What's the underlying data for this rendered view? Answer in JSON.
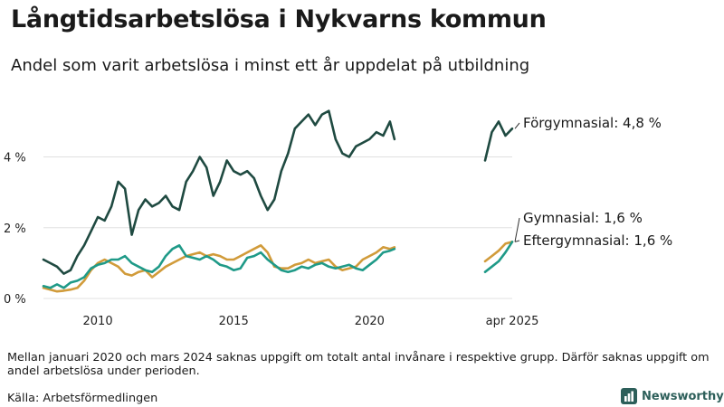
{
  "header": {
    "title": "Långtidsarbetslösa i Nykvarns kommun",
    "subtitle": "Andel som varit arbetslösa i minst ett år uppdelat på utbildning"
  },
  "footer": {
    "note": "Mellan januari 2020 och mars 2024 saknas uppgift om totalt antal invånare i respektive grupp. Därför saknas uppgift om andel arbetslösa under perioden.",
    "source": "Källa: Arbetsförmedlingen",
    "brand": "Newsworthy"
  },
  "colors": {
    "forgymnasial": "#1f4a41",
    "gymnasial": "#d19b3a",
    "eftergymnasial": "#1f9a88",
    "grid": "#e0e0e0",
    "brand": "#2d5f5a"
  },
  "chart_data": {
    "type": "line",
    "title": "Långtidsarbetslösa i Nykvarns kommun",
    "subtitle": "Andel som varit arbetslösa i minst ett år uppdelat på utbildning",
    "xlabel": "",
    "ylabel": "",
    "x_ticks": [
      "2010",
      "2015",
      "2020",
      "apr 2025"
    ],
    "y_ticks": [
      "0 %",
      "2 %",
      "4 %"
    ],
    "y_tick_values": [
      0,
      2,
      4
    ],
    "xlim": [
      "2008-01",
      "2025-04"
    ],
    "ylim": [
      0,
      5.7
    ],
    "grid": "horizontal",
    "series": [
      {
        "name": "Förgymnasial",
        "end_label": "Förgymnasial: 4,8 %",
        "segments": [
          {
            "x": [
              "2008-01",
              "2008-04",
              "2008-07",
              "2008-10",
              "2009-01",
              "2009-04",
              "2009-07",
              "2009-10",
              "2010-01",
              "2010-04",
              "2010-07",
              "2010-10",
              "2011-01",
              "2011-04",
              "2011-07",
              "2011-10",
              "2012-01",
              "2012-04",
              "2012-07",
              "2012-10",
              "2013-01",
              "2013-04",
              "2013-07",
              "2013-10",
              "2014-01",
              "2014-04",
              "2014-07",
              "2014-10",
              "2015-01",
              "2015-04",
              "2015-07",
              "2015-10",
              "2016-01",
              "2016-04",
              "2016-07",
              "2016-10",
              "2017-01",
              "2017-04",
              "2017-07",
              "2017-10",
              "2018-01",
              "2018-04",
              "2018-07",
              "2018-10",
              "2019-01",
              "2019-04",
              "2019-07",
              "2019-10",
              "2020-01",
              "2020-04",
              "2020-07",
              "2020-10",
              "2020-12"
            ],
            "y": [
              1.1,
              1.0,
              0.9,
              0.7,
              0.8,
              1.2,
              1.5,
              1.9,
              2.3,
              2.2,
              2.6,
              3.3,
              3.1,
              1.8,
              2.5,
              2.8,
              2.6,
              2.7,
              2.9,
              2.6,
              2.5,
              3.3,
              3.6,
              4.0,
              3.7,
              2.9,
              3.3,
              3.9,
              3.6,
              3.5,
              3.6,
              3.4,
              2.9,
              2.5,
              2.8,
              3.6,
              4.1,
              4.8,
              5.0,
              5.2,
              4.9,
              5.2,
              5.3,
              4.5,
              4.1,
              4.0,
              4.3,
              4.4,
              4.5,
              4.7,
              4.6,
              5.0,
              4.5
            ]
          },
          {
            "x": [
              "2024-04",
              "2024-07",
              "2024-10",
              "2025-01",
              "2025-04"
            ],
            "y": [
              3.9,
              4.7,
              5.0,
              4.6,
              4.8
            ]
          }
        ]
      },
      {
        "name": "Gymnasial",
        "end_label": "Gymnasial: 1,6 %",
        "segments": [
          {
            "x": [
              "2008-01",
              "2008-04",
              "2008-07",
              "2008-10",
              "2009-01",
              "2009-04",
              "2009-07",
              "2009-10",
              "2010-01",
              "2010-04",
              "2010-07",
              "2010-10",
              "2011-01",
              "2011-04",
              "2011-07",
              "2011-10",
              "2012-01",
              "2012-04",
              "2012-07",
              "2012-10",
              "2013-01",
              "2013-04",
              "2013-07",
              "2013-10",
              "2014-01",
              "2014-04",
              "2014-07",
              "2014-10",
              "2015-01",
              "2015-04",
              "2015-07",
              "2015-10",
              "2016-01",
              "2016-04",
              "2016-07",
              "2016-10",
              "2017-01",
              "2017-04",
              "2017-07",
              "2017-10",
              "2018-01",
              "2018-04",
              "2018-07",
              "2018-10",
              "2019-01",
              "2019-04",
              "2019-07",
              "2019-10",
              "2020-01",
              "2020-04",
              "2020-07",
              "2020-10",
              "2020-12"
            ],
            "y": [
              0.3,
              0.25,
              0.2,
              0.22,
              0.25,
              0.3,
              0.5,
              0.8,
              1.0,
              1.1,
              1.0,
              0.9,
              0.7,
              0.65,
              0.75,
              0.8,
              0.6,
              0.75,
              0.9,
              1.0,
              1.1,
              1.2,
              1.25,
              1.3,
              1.2,
              1.25,
              1.2,
              1.1,
              1.1,
              1.2,
              1.3,
              1.4,
              1.5,
              1.3,
              0.9,
              0.85,
              0.85,
              0.95,
              1.0,
              1.1,
              1.0,
              1.05,
              1.1,
              0.9,
              0.8,
              0.85,
              0.9,
              1.1,
              1.2,
              1.3,
              1.45,
              1.4,
              1.45
            ]
          },
          {
            "x": [
              "2024-04",
              "2024-07",
              "2024-10",
              "2025-01",
              "2025-04"
            ],
            "y": [
              1.05,
              1.2,
              1.35,
              1.55,
              1.6
            ]
          }
        ]
      },
      {
        "name": "Eftergymnasial",
        "end_label": "Eftergymnasial: 1,6 %",
        "segments": [
          {
            "x": [
              "2008-01",
              "2008-04",
              "2008-07",
              "2008-10",
              "2009-01",
              "2009-04",
              "2009-07",
              "2009-10",
              "2010-01",
              "2010-04",
              "2010-07",
              "2010-10",
              "2011-01",
              "2011-04",
              "2011-07",
              "2011-10",
              "2012-01",
              "2012-04",
              "2012-07",
              "2012-10",
              "2013-01",
              "2013-04",
              "2013-07",
              "2013-10",
              "2014-01",
              "2014-04",
              "2014-07",
              "2014-10",
              "2015-01",
              "2015-04",
              "2015-07",
              "2015-10",
              "2016-01",
              "2016-04",
              "2016-07",
              "2016-10",
              "2017-01",
              "2017-04",
              "2017-07",
              "2017-10",
              "2018-01",
              "2018-04",
              "2018-07",
              "2018-10",
              "2019-01",
              "2019-04",
              "2019-07",
              "2019-10",
              "2020-01",
              "2020-04",
              "2020-07",
              "2020-10",
              "2020-12"
            ],
            "y": [
              0.35,
              0.3,
              0.4,
              0.3,
              0.45,
              0.5,
              0.6,
              0.85,
              0.95,
              1.0,
              1.1,
              1.1,
              1.2,
              1.0,
              0.9,
              0.8,
              0.75,
              0.9,
              1.2,
              1.4,
              1.5,
              1.2,
              1.15,
              1.1,
              1.2,
              1.1,
              0.95,
              0.9,
              0.8,
              0.85,
              1.15,
              1.2,
              1.3,
              1.1,
              0.95,
              0.8,
              0.75,
              0.8,
              0.9,
              0.85,
              0.95,
              1.0,
              0.9,
              0.85,
              0.9,
              0.95,
              0.85,
              0.8,
              0.95,
              1.1,
              1.3,
              1.35,
              1.4
            ]
          },
          {
            "x": [
              "2024-04",
              "2024-07",
              "2024-10",
              "2025-01",
              "2025-04"
            ],
            "y": [
              0.75,
              0.9,
              1.05,
              1.3,
              1.6
            ]
          }
        ]
      }
    ]
  }
}
